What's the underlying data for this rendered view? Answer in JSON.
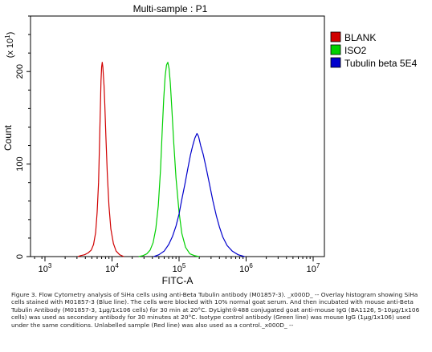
{
  "chart_data": {
    "type": "histogram-overlay",
    "title": "Multi-sample : P1",
    "xlabel": "FITC-A",
    "ylabel": "Count",
    "y_multiplier_label": "(x 10",
    "y_multiplier_exp": "1",
    "x_scale": "log",
    "x_range": [
      1000,
      10000000
    ],
    "y_range": [
      0,
      260
    ],
    "x_ticks": [
      {
        "value": 1000,
        "base": "10",
        "exp": "3"
      },
      {
        "value": 10000,
        "base": "10",
        "exp": "4"
      },
      {
        "value": 100000,
        "base": "10",
        "exp": "5"
      },
      {
        "value": 1000000,
        "base": "10",
        "exp": "6"
      },
      {
        "value": 10000000,
        "base": "10",
        "exp": "7"
      }
    ],
    "y_ticks": [
      {
        "value": 0,
        "label": "0"
      },
      {
        "value": 100,
        "label": "100"
      },
      {
        "value": 200,
        "label": "200"
      }
    ],
    "legend_position": "top-right",
    "series": [
      {
        "name": "BLANK",
        "color": "#d00000",
        "points": [
          [
            3100,
            0
          ],
          [
            3400,
            1
          ],
          [
            3900,
            2
          ],
          [
            4400,
            4
          ],
          [
            4900,
            7
          ],
          [
            5300,
            13
          ],
          [
            5700,
            26
          ],
          [
            6000,
            48
          ],
          [
            6300,
            80
          ],
          [
            6500,
            120
          ],
          [
            6700,
            160
          ],
          [
            6850,
            190
          ],
          [
            7000,
            205
          ],
          [
            7150,
            210
          ],
          [
            7300,
            205
          ],
          [
            7450,
            195
          ],
          [
            7600,
            185
          ],
          [
            7800,
            165
          ],
          [
            8100,
            130
          ],
          [
            8500,
            90
          ],
          [
            9000,
            55
          ],
          [
            9600,
            30
          ],
          [
            10500,
            14
          ],
          [
            11500,
            6
          ],
          [
            13000,
            2
          ],
          [
            15000,
            0
          ]
        ]
      },
      {
        "name": "ISO2",
        "color": "#00d000",
        "points": [
          [
            25000,
            0
          ],
          [
            29000,
            1
          ],
          [
            33000,
            3
          ],
          [
            37000,
            7
          ],
          [
            41000,
            15
          ],
          [
            45000,
            30
          ],
          [
            49000,
            55
          ],
          [
            53000,
            95
          ],
          [
            56000,
            135
          ],
          [
            59000,
            170
          ],
          [
            62000,
            195
          ],
          [
            65000,
            207
          ],
          [
            68000,
            210
          ],
          [
            71000,
            203
          ],
          [
            74000,
            188
          ],
          [
            78000,
            160
          ],
          [
            83000,
            125
          ],
          [
            90000,
            85
          ],
          [
            100000,
            48
          ],
          [
            110000,
            25
          ],
          [
            125000,
            10
          ],
          [
            145000,
            3
          ],
          [
            170000,
            1
          ],
          [
            200000,
            0
          ]
        ]
      },
      {
        "name": "Tubulin beta 5E4",
        "color": "#0000cc",
        "points": [
          [
            42000,
            0
          ],
          [
            50000,
            2
          ],
          [
            60000,
            6
          ],
          [
            70000,
            13
          ],
          [
            80000,
            22
          ],
          [
            90000,
            33
          ],
          [
            100000,
            46
          ],
          [
            110000,
            62
          ],
          [
            122000,
            78
          ],
          [
            135000,
            95
          ],
          [
            148000,
            110
          ],
          [
            160000,
            120
          ],
          [
            172000,
            128
          ],
          [
            185000,
            133
          ],
          [
            195000,
            130
          ],
          [
            210000,
            120
          ],
          [
            230000,
            110
          ],
          [
            255000,
            95
          ],
          [
            285000,
            78
          ],
          [
            320000,
            60
          ],
          [
            360000,
            44
          ],
          [
            400000,
            32
          ],
          [
            450000,
            21
          ],
          [
            520000,
            12
          ],
          [
            620000,
            6
          ],
          [
            760000,
            2
          ],
          [
            950000,
            0
          ]
        ]
      }
    ]
  },
  "caption": {
    "text": "Figure 3. Flow Cytometry analysis of SiHa cells using anti-Beta Tubulin antibody (M01857-3). _x000D_ -- Overlay histogram showing SiHa cells stained with M01857-3 (Blue line). The cells were blocked with 10% normal goat serum. And then incubated with mouse anti-Beta Tubulin Antibody (M01857-3, 1μg/1x106 cells) for 30 min at 20°C. DyLight®488 conjugated goat anti-mouse IgG (BA1126, 5-10μg/1x106 cells) was used as secondary antibody for 30 minutes at 20°C. Isotype control antibody (Green line) was mouse IgG (1μg/1x106) used under the same conditions. Unlabelled sample (Red line) was also used as a control._x000D_ --"
  }
}
